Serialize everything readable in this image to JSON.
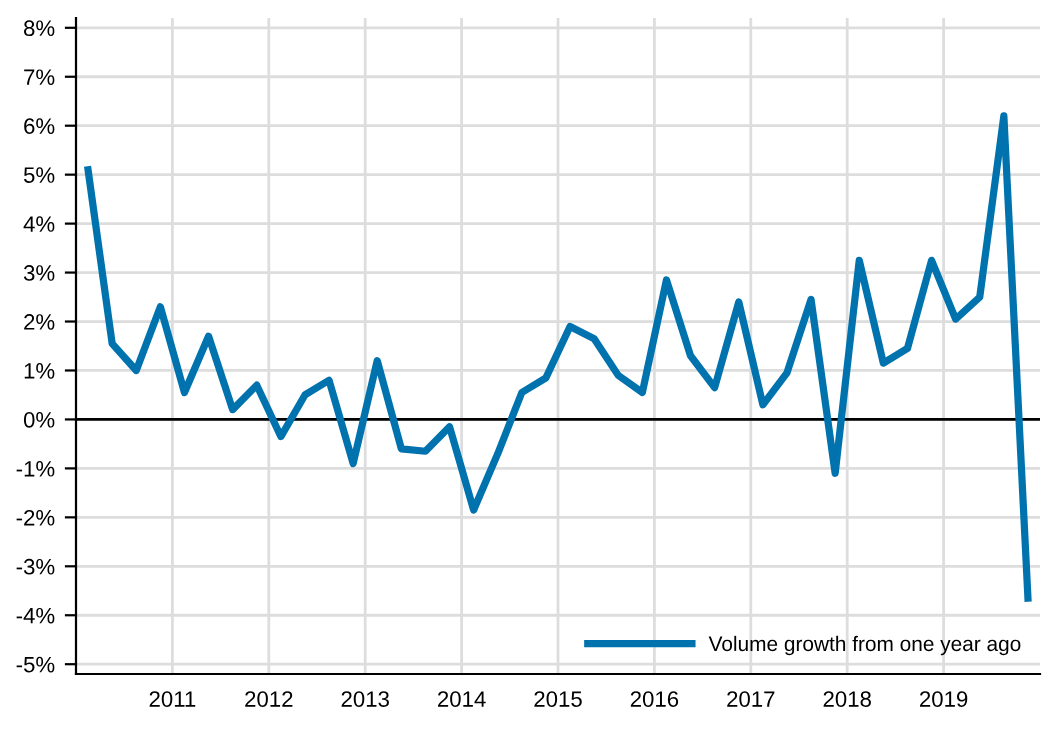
{
  "chart_data": {
    "type": "line",
    "x": [
      2010.125,
      2010.375,
      2010.625,
      2010.875,
      2011.125,
      2011.375,
      2011.625,
      2011.875,
      2012.125,
      2012.375,
      2012.625,
      2012.875,
      2013.125,
      2013.375,
      2013.625,
      2013.875,
      2014.125,
      2014.375,
      2014.625,
      2014.875,
      2015.125,
      2015.375,
      2015.625,
      2015.875,
      2016.125,
      2016.375,
      2016.625,
      2016.875,
      2017.125,
      2017.375,
      2017.625,
      2017.875,
      2018.125,
      2018.375,
      2018.625,
      2018.875,
      2019.125,
      2019.375,
      2019.625,
      2019.875
    ],
    "series": [
      {
        "name": "Volume growth from one year ago",
        "color": "#0073ae",
        "values": [
          5.1,
          1.55,
          1.0,
          2.3,
          0.55,
          1.7,
          0.2,
          0.7,
          -0.35,
          0.5,
          0.8,
          -0.9,
          1.2,
          -0.6,
          -0.65,
          -0.15,
          -1.85,
          -0.7,
          0.55,
          0.85,
          1.9,
          1.65,
          0.9,
          0.55,
          2.85,
          1.3,
          0.65,
          2.4,
          0.3,
          0.95,
          2.45,
          -1.1,
          3.25,
          1.15,
          1.45,
          3.25,
          2.05,
          2.5,
          6.2,
          -3.65
        ]
      }
    ],
    "xlim": [
      2010,
      2020
    ],
    "xticks": [
      2011,
      2012,
      2013,
      2014,
      2015,
      2016,
      2017,
      2018,
      2019
    ],
    "ylim": [
      -5.2,
      8.2
    ],
    "yticks": [
      {
        "value": -5,
        "label": "-5%"
      },
      {
        "value": -4,
        "label": "-4%"
      },
      {
        "value": -3,
        "label": "-3%"
      },
      {
        "value": -2,
        "label": "-2%"
      },
      {
        "value": -1,
        "label": "-1%"
      },
      {
        "value": 0,
        "label": "0%"
      },
      {
        "value": 1,
        "label": "1%"
      },
      {
        "value": 2,
        "label": "2%"
      },
      {
        "value": 3,
        "label": "3%"
      },
      {
        "value": 4,
        "label": "4%"
      },
      {
        "value": 5,
        "label": "5%"
      },
      {
        "value": 6,
        "label": "6%"
      },
      {
        "value": 7,
        "label": "7%"
      },
      {
        "value": 8,
        "label": "8%"
      }
    ],
    "ref_lines": [
      {
        "axis": "y",
        "value": 0,
        "color": "#000000"
      }
    ],
    "grid": true,
    "legend": "bottom right",
    "marker": "none",
    "line_style": "solid"
  }
}
